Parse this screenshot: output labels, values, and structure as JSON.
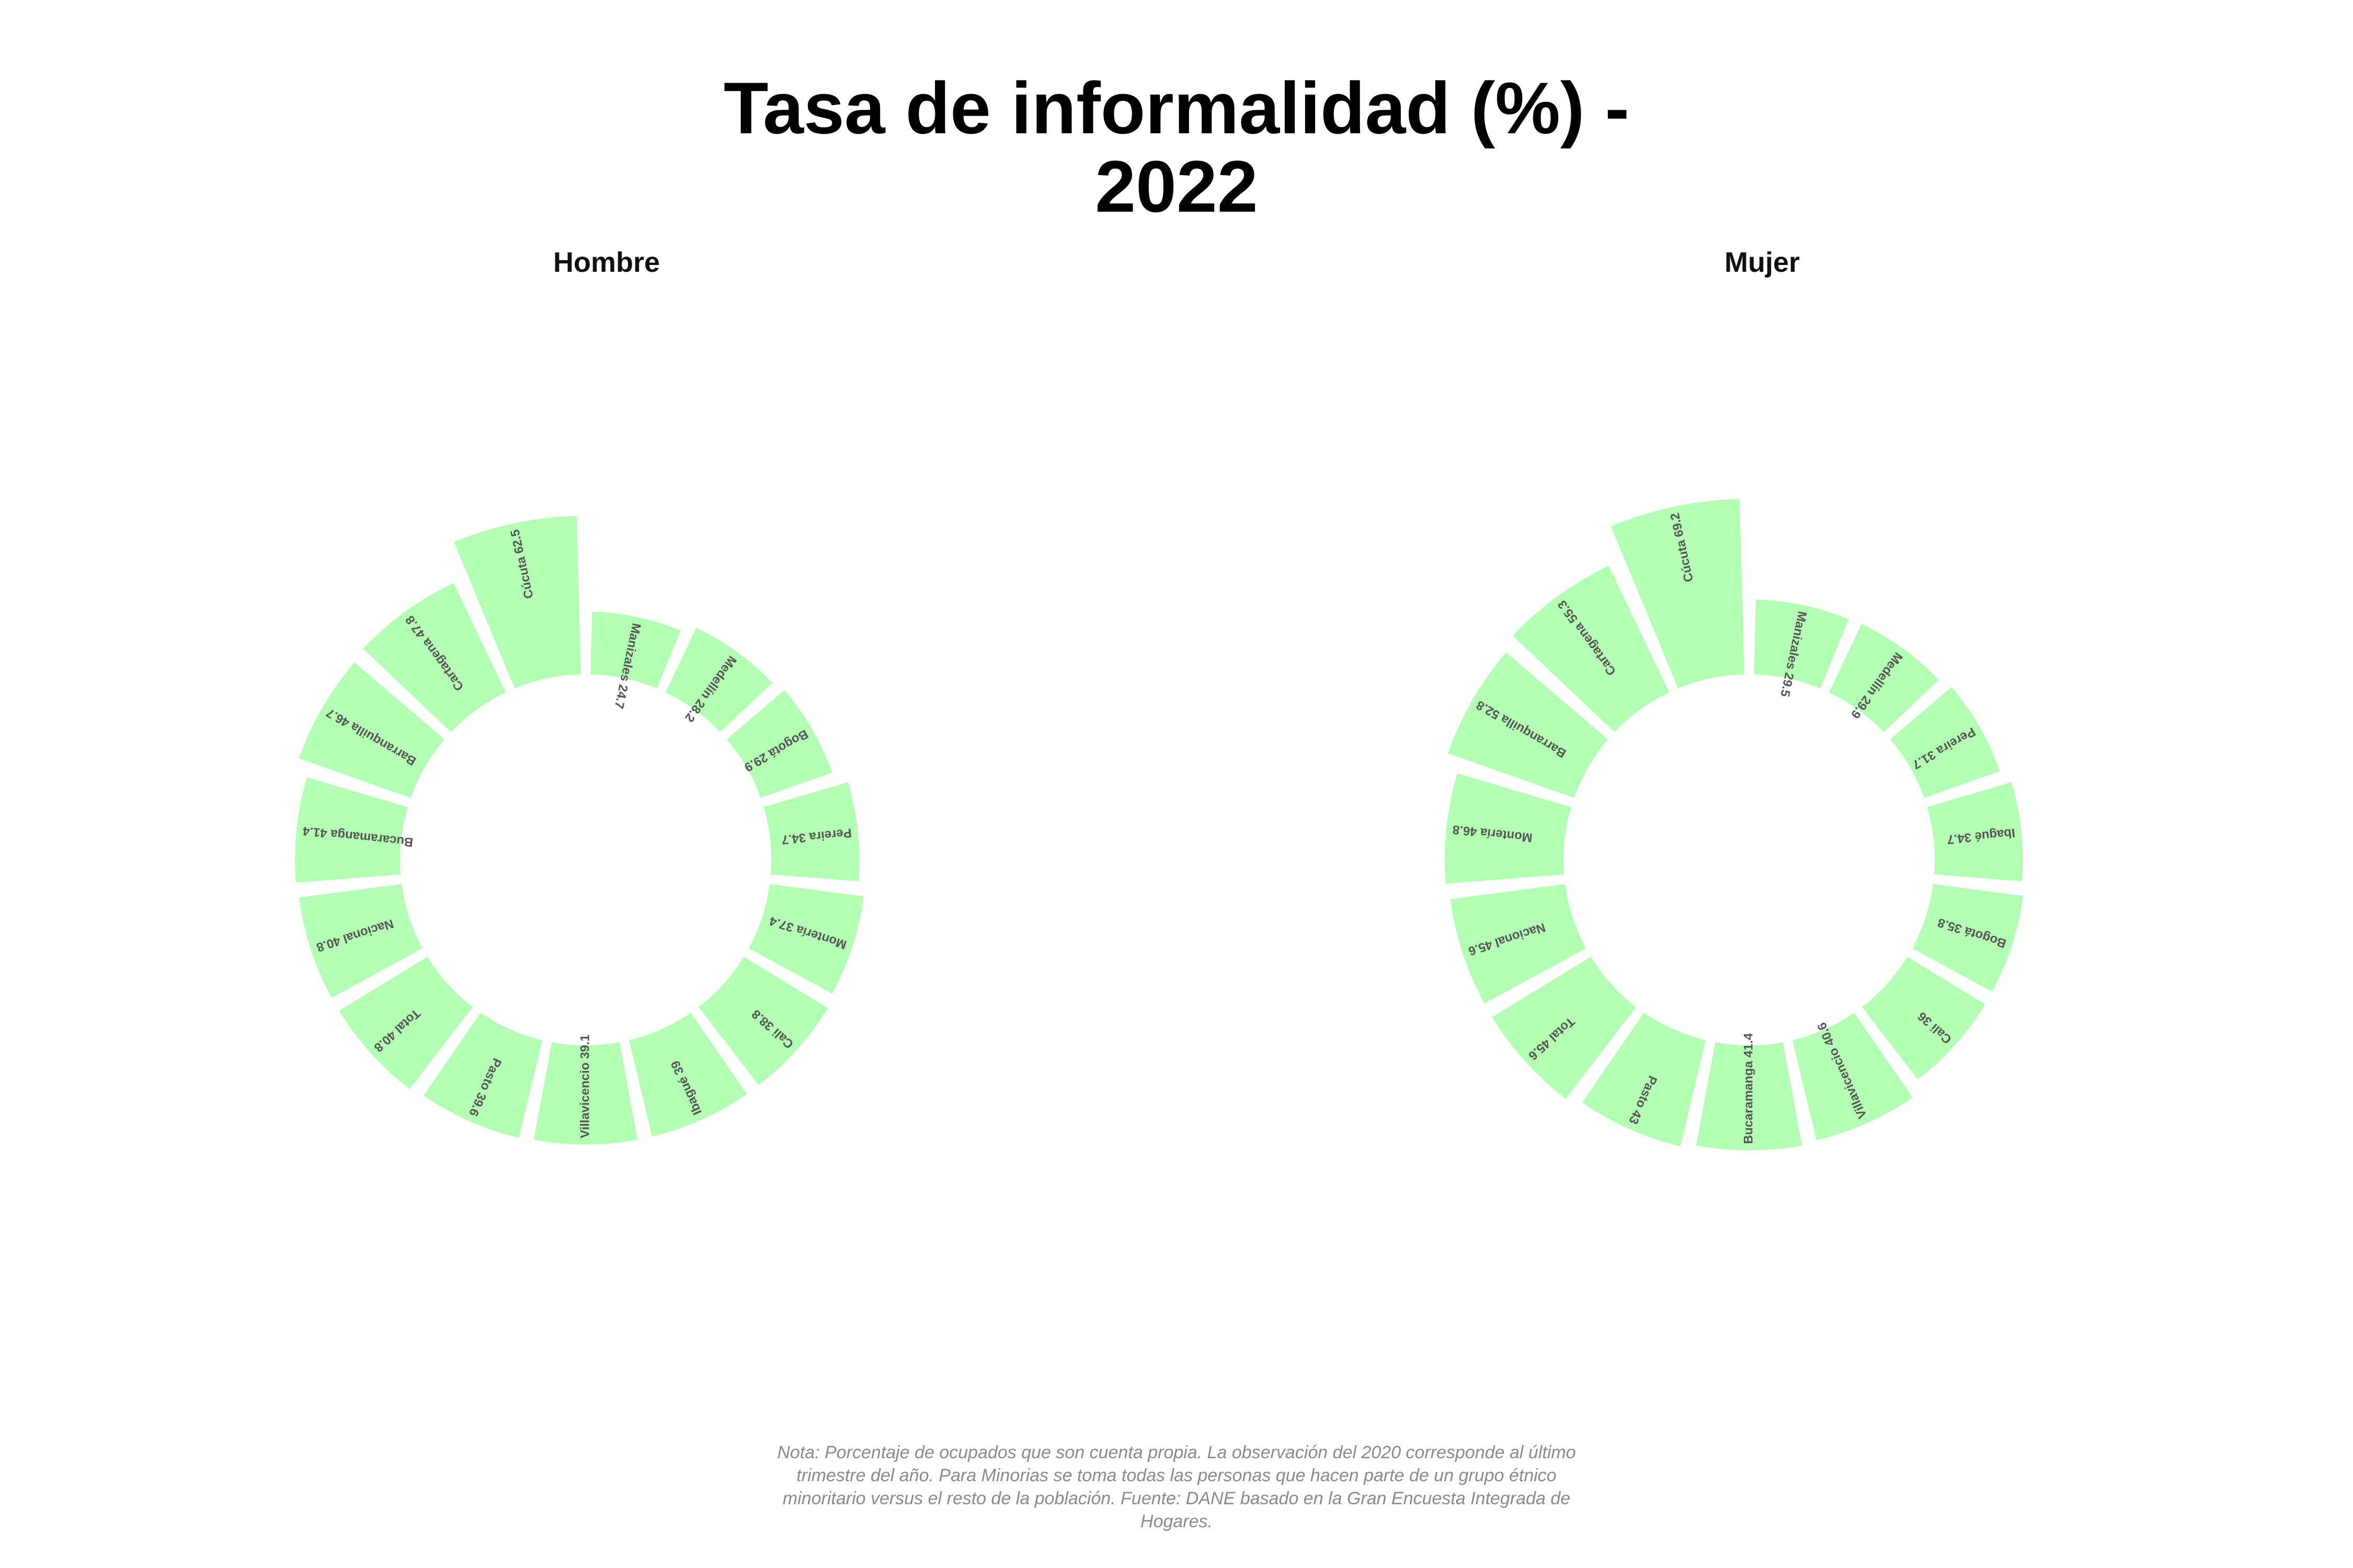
{
  "title_lines": [
    "Tasa de informalidad (%) -",
    "2022"
  ],
  "note_lines": [
    "Nota: Porcentaje de ocupados que son cuenta propia. La observación del 2020 corresponde al último",
    "trimestre del año. Para Minorias se toma todas las personas que hacen parte de un grupo étnico",
    "minoritario versus el resto de la población. Fuente: DANE basado en la Gran Encuesta Integrada de",
    "Hogares."
  ],
  "colors": {
    "bar": "#b3ffb3",
    "label": "#555555"
  },
  "chart_data": [
    {
      "type": "bar",
      "layout": "circular",
      "subtitle": "Hombre",
      "categories": [
        "Manizales",
        "Medellín",
        "Bogotá",
        "Pereira",
        "Montería",
        "Cali",
        "Ibagué",
        "Villavicencio",
        "Pasto",
        "Total",
        "Nacional",
        "Bucaramanga",
        "Barranquilla",
        "Cartagena",
        "Cúcuta"
      ],
      "values": [
        24.7,
        28.2,
        29.9,
        34.7,
        37.4,
        38.8,
        39,
        39.1,
        39.6,
        40.8,
        40.8,
        41.4,
        46.7,
        47.8,
        62.5
      ],
      "labels": [
        "Manizales 24.7",
        "Medellín 28.2",
        "Bogotá 29.9",
        "Pereira 34.7",
        "Montería 37.4",
        "Cali 38.8",
        "Ibagué 39",
        "Villavicencio 39.1",
        "Pasto 39.6",
        "Total 40.8",
        "Nacional 40.8",
        "Bucaramanga 41.4",
        "Barranquilla 46.7",
        "Cartagena 47.8",
        "Cúcuta 62.5"
      ]
    },
    {
      "type": "bar",
      "layout": "circular",
      "subtitle": "Mujer",
      "categories": [
        "Manizales",
        "Medellín",
        "Pereira",
        "Ibagué",
        "Bogotá",
        "Cali",
        "Villavicencio",
        "Bucaramanga",
        "Pasto",
        "Total",
        "Nacional",
        "Montería",
        "Barranquilla",
        "Cartagena",
        "Cúcuta"
      ],
      "values": [
        29.5,
        29.9,
        31.7,
        34.7,
        35.8,
        36,
        40.6,
        41.4,
        43,
        45.6,
        45.6,
        46.8,
        52.8,
        55.3,
        69.2
      ],
      "labels": [
        "Manizales 29.5",
        "Medellín 29.9",
        "Pereira 31.7",
        "Ibagué 34.7",
        "Bogotá 35.8",
        "Cali 36",
        "Villavicencio 40.6",
        "Bucaramanga 41.4",
        "Pasto 43",
        "Total 45.6",
        "Nacional 45.6",
        "Montería 46.8",
        "Barranquilla 52.8",
        "Cartagena 55.3",
        "Cúcuta 69.2"
      ]
    }
  ]
}
